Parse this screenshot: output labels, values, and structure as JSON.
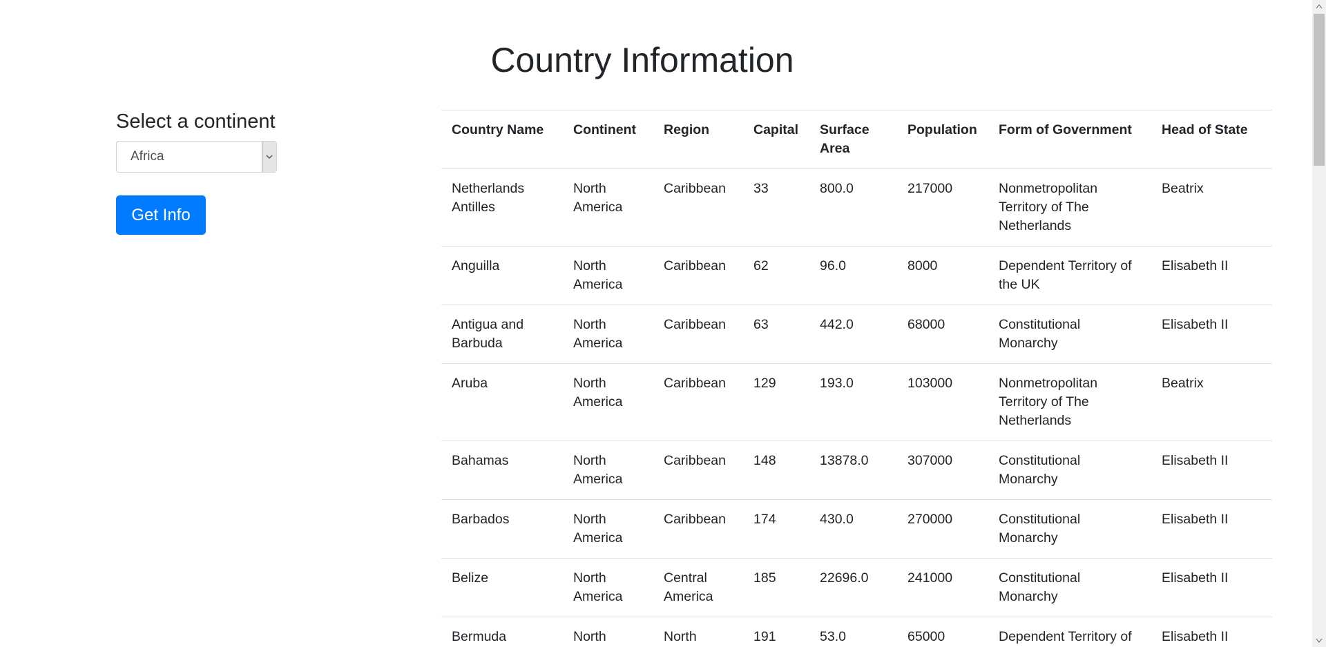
{
  "header": {
    "title": "Country Information"
  },
  "form": {
    "label": "Select a continent",
    "selected": "Africa",
    "button": "Get Info"
  },
  "table": {
    "columns": [
      "Country Name",
      "Continent",
      "Region",
      "Capital",
      "Surface Area",
      "Population",
      "Form of Government",
      "Head of State"
    ],
    "rows": [
      [
        "Netherlands Antilles",
        "North America",
        "Caribbean",
        "33",
        "800.0",
        "217000",
        "Nonmetropolitan Territory of The Netherlands",
        "Beatrix"
      ],
      [
        "Anguilla",
        "North America",
        "Caribbean",
        "62",
        "96.0",
        "8000",
        "Dependent Territory of the UK",
        "Elisabeth II"
      ],
      [
        "Antigua and Barbuda",
        "North America",
        "Caribbean",
        "63",
        "442.0",
        "68000",
        "Constitutional Monarchy",
        "Elisabeth II"
      ],
      [
        "Aruba",
        "North America",
        "Caribbean",
        "129",
        "193.0",
        "103000",
        "Nonmetropolitan Territory of The Netherlands",
        "Beatrix"
      ],
      [
        "Bahamas",
        "North America",
        "Caribbean",
        "148",
        "13878.0",
        "307000",
        "Constitutional Monarchy",
        "Elisabeth II"
      ],
      [
        "Barbados",
        "North America",
        "Caribbean",
        "174",
        "430.0",
        "270000",
        "Constitutional Monarchy",
        "Elisabeth II"
      ],
      [
        "Belize",
        "North America",
        "Central America",
        "185",
        "22696.0",
        "241000",
        "Constitutional Monarchy",
        "Elisabeth II"
      ],
      [
        "Bermuda",
        "North America",
        "North America",
        "191",
        "53.0",
        "65000",
        "Dependent Territory of the UK",
        "Elisabeth II"
      ]
    ]
  }
}
